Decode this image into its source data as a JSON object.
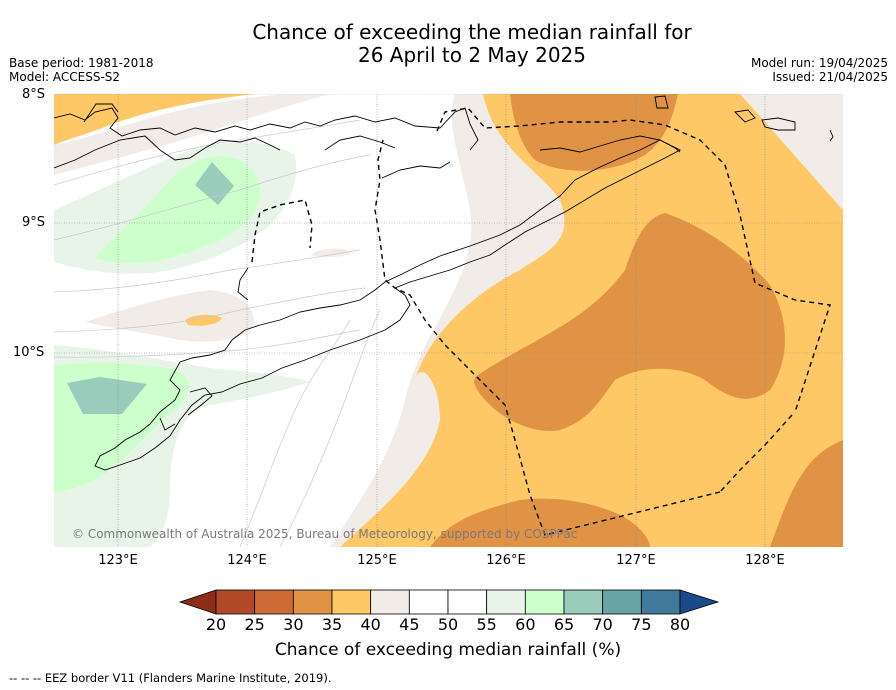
{
  "title": {
    "line1": "Chance of exceeding the median rainfall for",
    "line2": "26 April to 2 May 2025"
  },
  "meta": {
    "base_period": "Base period: 1981-2018",
    "model": "Model: ACCESS-S2",
    "model_run": "Model run: 19/04/2025",
    "issued": "Issued: 21/04/2025"
  },
  "axes": {
    "lat_labels": [
      "8°S",
      "9°S",
      "10°S"
    ],
    "lon_labels": [
      "123°E",
      "124°E",
      "125°E",
      "126°E",
      "127°E",
      "128°E"
    ]
  },
  "copyright": "© Commonwealth of Australia 2025, Bureau of Meteorology, supported by COSPPac",
  "colorbar": {
    "title": "Chance of exceeding median rainfall (%)",
    "ticks": [
      "20",
      "25",
      "30",
      "35",
      "40",
      "45",
      "50",
      "55",
      "60",
      "65",
      "70",
      "75",
      "80"
    ],
    "colors": {
      "under": "#8c2d1a",
      "b20_25": "#b24a2a",
      "b25_30": "#cd6a35",
      "b30_35": "#e09344",
      "b35_40": "#fdc865",
      "b40_45": "#f1ece7",
      "b45_50": "#ffffff",
      "b50_55": "#ffffff",
      "b55_60": "#e8f4e8",
      "b60_65": "#ccffcc",
      "b65_70": "#99ccbb",
      "b70_75": "#6aa3a3",
      "b75_80": "#3f7a9a",
      "over": "#1a4a8a"
    }
  },
  "footer": "--  --  -- EEZ border V11 (Flanders Marine Institute, 2019)."
}
